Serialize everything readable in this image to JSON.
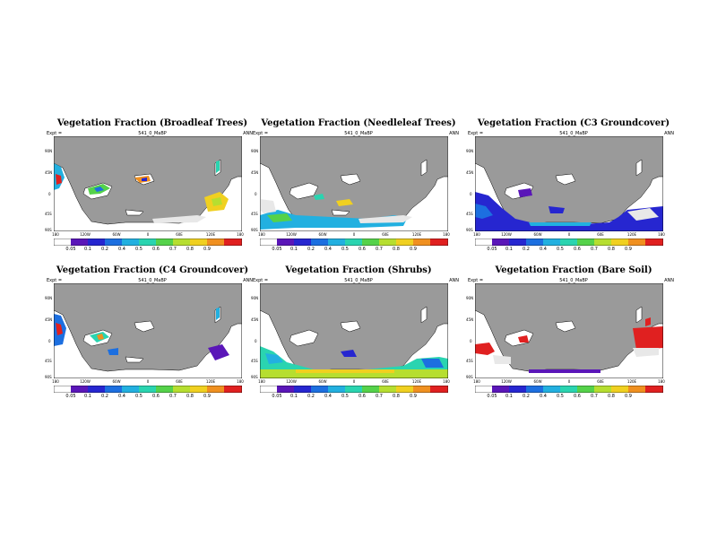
{
  "palette": [
    "#ffffff",
    "#5a16b8",
    "#2626d0",
    "#1c6fe0",
    "#22b0e0",
    "#2ad4b0",
    "#55d24a",
    "#b6de30",
    "#f0d020",
    "#f09020",
    "#e02020"
  ],
  "land_color": "#9a9a9a",
  "ice_color": "#e8e8e8",
  "panels": [
    {
      "title": "Vegetation Fraction (Broadleaf Trees)",
      "sub_left": "Expt = ",
      "sub_center": "541_0_MaBP",
      "sub_right": "ANN",
      "y_ticks": [
        "90N",
        "45N",
        "0",
        "45S",
        "90S"
      ],
      "x_ticks": [
        "180",
        "120W",
        "60W",
        "0",
        "60E",
        "120E",
        "180"
      ],
      "cbar_labels": [
        "0.05",
        "0.1",
        "0.2",
        "0.4",
        "0.5",
        "0.6",
        "0.7",
        "0.8",
        "0.9"
      ]
    },
    {
      "title": "Vegetation Fraction (Needleleaf Trees)",
      "sub_left": "Expt = ",
      "sub_center": "541_0_MaBP",
      "sub_right": "ANN",
      "y_ticks": [
        "90N",
        "45N",
        "0",
        "45S",
        "90S"
      ],
      "x_ticks": [
        "180",
        "120W",
        "60W",
        "0",
        "60E",
        "120E",
        "180"
      ],
      "cbar_labels": [
        "0.05",
        "0.1",
        "0.2",
        "0.4",
        "0.5",
        "0.6",
        "0.7",
        "0.8",
        "0.9"
      ]
    },
    {
      "title": "Vegetation Fraction (C3 Groundcover)",
      "sub_left": "Expt = ",
      "sub_center": "541_0_MaBP",
      "sub_right": "ANN",
      "y_ticks": [
        "90N",
        "45N",
        "0",
        "45S",
        "90S"
      ],
      "x_ticks": [
        "180",
        "120W",
        "60W",
        "0",
        "60E",
        "120E",
        "180"
      ],
      "cbar_labels": [
        "0.05",
        "0.1",
        "0.2",
        "0.4",
        "0.5",
        "0.6",
        "0.7",
        "0.8",
        "0.9"
      ]
    },
    {
      "title": "Vegetation Fraction (C4 Groundcover)",
      "sub_left": "Expt = ",
      "sub_center": "541_0_MaBP",
      "sub_right": "ANN",
      "y_ticks": [
        "90N",
        "45N",
        "0",
        "45S",
        "90S"
      ],
      "x_ticks": [
        "180",
        "120W",
        "60W",
        "0",
        "60E",
        "120E",
        "180"
      ],
      "cbar_labels": [
        "0.05",
        "0.1",
        "0.2",
        "0.4",
        "0.5",
        "0.6",
        "0.7",
        "0.8",
        "0.9"
      ]
    },
    {
      "title": "Vegetation Fraction (Shrubs)",
      "sub_left": "Expt = ",
      "sub_center": "541_0_MaBP",
      "sub_right": "ANN",
      "y_ticks": [
        "90N",
        "45N",
        "0",
        "45S",
        "90S"
      ],
      "x_ticks": [
        "180",
        "120W",
        "60W",
        "0",
        "60E",
        "120E",
        "180"
      ],
      "cbar_labels": [
        "0.05",
        "0.1",
        "0.2",
        "0.4",
        "0.5",
        "0.6",
        "0.7",
        "0.8",
        "0.9"
      ]
    },
    {
      "title": "Vegetation Fraction (Bare Soil)",
      "sub_left": "Expt = ",
      "sub_center": "541_0_MaBP",
      "sub_right": "ANN",
      "y_ticks": [
        "90N",
        "45N",
        "0",
        "45S",
        "90S"
      ],
      "x_ticks": [
        "180",
        "120W",
        "60W",
        "0",
        "60E",
        "120E",
        "180"
      ],
      "cbar_labels": [
        "0.05",
        "0.1",
        "0.2",
        "0.4",
        "0.5",
        "0.6",
        "0.7",
        "0.8",
        "0.9"
      ]
    }
  ]
}
